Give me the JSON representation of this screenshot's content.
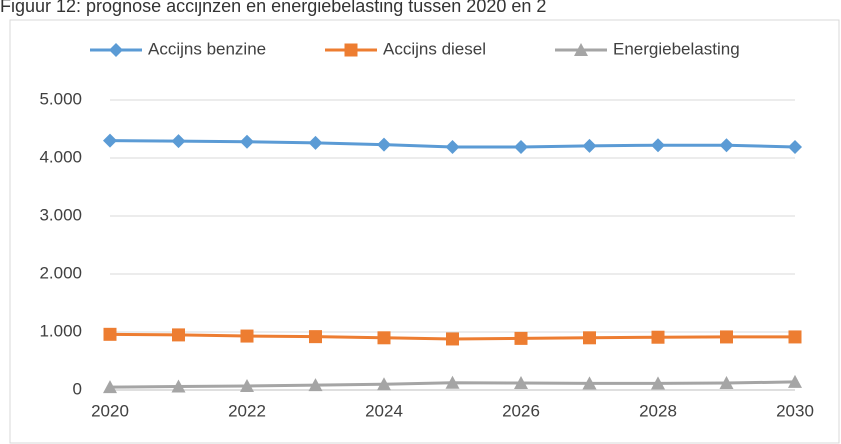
{
  "chart_data": {
    "type": "line",
    "title": "Figuur 12: prognose accijnzen en energiebelasting tussen 2020 en 2",
    "x": [
      2020,
      2021,
      2022,
      2023,
      2024,
      2025,
      2026,
      2027,
      2028,
      2029,
      2030
    ],
    "series": [
      {
        "name": "Accijns benzine",
        "color": "#5b9bd5",
        "marker": "diamond",
        "values": [
          4300,
          4290,
          4280,
          4260,
          4230,
          4190,
          4190,
          4210,
          4220,
          4220,
          4190
        ]
      },
      {
        "name": "Accijns diesel",
        "color": "#ed7d31",
        "marker": "square",
        "values": [
          960,
          950,
          930,
          920,
          900,
          880,
          890,
          900,
          910,
          915,
          915
        ]
      },
      {
        "name": "Energiebelasting",
        "color": "#a5a5a5",
        "marker": "triangle",
        "values": [
          50,
          60,
          70,
          85,
          100,
          125,
          120,
          115,
          115,
          120,
          140
        ]
      }
    ],
    "xlim": [
      2020,
      2030
    ],
    "xticks": [
      2020,
      2022,
      2024,
      2026,
      2028,
      2030
    ],
    "ylim": [
      0,
      5000
    ],
    "yticks": [
      0,
      {
        "value": 1000,
        "label": "1.000"
      },
      {
        "value": 2000,
        "label": "2.000"
      },
      {
        "value": 3000,
        "label": "3.000"
      },
      {
        "value": 4000,
        "label": "4.000"
      },
      {
        "value": 5000,
        "label": "5.000"
      }
    ],
    "grid": true,
    "legend": "top"
  }
}
